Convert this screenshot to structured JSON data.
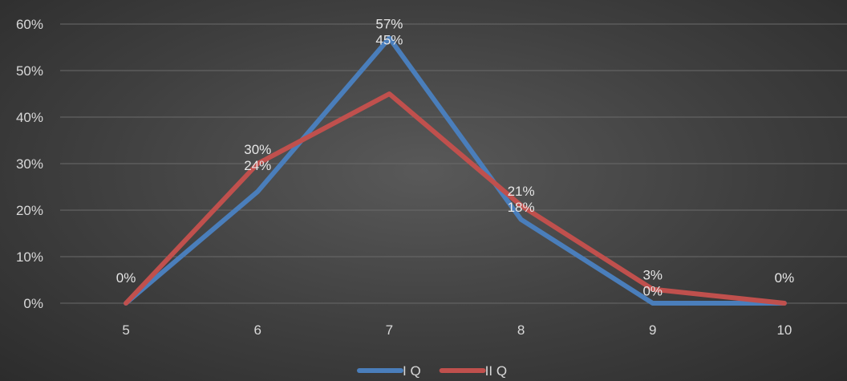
{
  "chart_data": {
    "type": "line",
    "categories": [
      "5",
      "6",
      "7",
      "8",
      "9",
      "10"
    ],
    "yticks": [
      "0%",
      "10%",
      "20%",
      "30%",
      "40%",
      "50%",
      "60%"
    ],
    "ylim": [
      0,
      60
    ],
    "grid": true,
    "legend_position": "bottom",
    "series": [
      {
        "name": "I Q",
        "color": "#4a7ebb",
        "values": [
          0,
          24,
          57,
          18,
          0,
          0
        ],
        "labels": [
          "0%",
          "24%",
          "57%",
          "18%",
          "0%",
          "0%"
        ]
      },
      {
        "name": "II Q",
        "color": "#c0504d",
        "values": [
          0,
          30,
          45,
          21,
          3,
          0
        ],
        "labels": [
          "0%",
          "30%",
          "45%",
          "21%",
          "3%",
          "0%"
        ]
      }
    ]
  }
}
